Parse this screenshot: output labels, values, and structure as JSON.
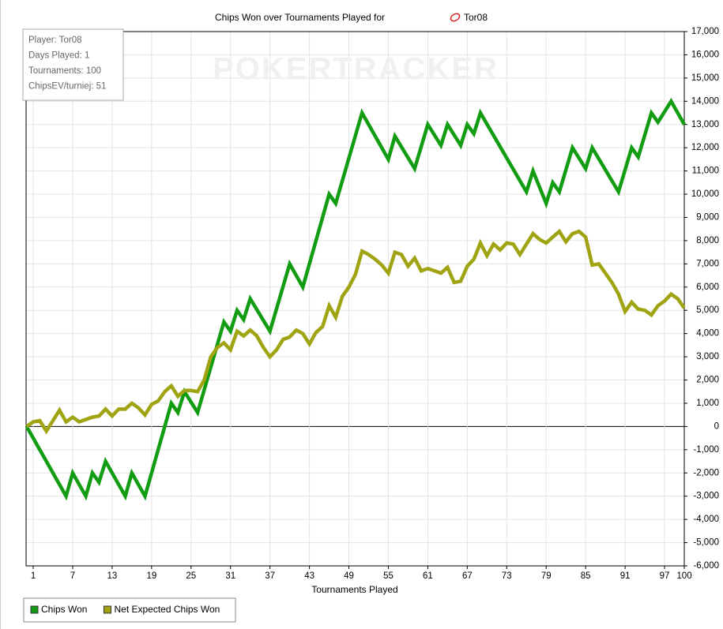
{
  "chart_data": {
    "type": "line",
    "title": "Chips Won over Tournaments Played for",
    "player": "Tor08",
    "watermark": "POKERTRACKER",
    "info": [
      "Player: Tor08",
      "Days Played: 1",
      "Tournaments: 100",
      "ChipsEV/turniej: 51"
    ],
    "xlabel": "Tournaments Played",
    "xlim": [
      0,
      100
    ],
    "xticks": [
      1,
      7,
      13,
      19,
      25,
      31,
      37,
      43,
      49,
      55,
      61,
      67,
      73,
      79,
      85,
      91,
      97,
      100
    ],
    "ylim": [
      -6000,
      17000
    ],
    "yticks": [
      {
        "value": -6000,
        "label": "-6,000"
      },
      {
        "value": -5000,
        "label": "-5,000"
      },
      {
        "value": -4000,
        "label": "-4,000"
      },
      {
        "value": -3000,
        "label": "-3,000"
      },
      {
        "value": -2000,
        "label": "-2,000"
      },
      {
        "value": -1000,
        "label": "-1,000"
      },
      0,
      {
        "value": 1000,
        "label": "1,000"
      },
      {
        "value": 2000,
        "label": "2,000"
      },
      {
        "value": 3000,
        "label": "3,000"
      },
      {
        "value": 4000,
        "label": "4,000"
      },
      {
        "value": 5000,
        "label": "5,000"
      },
      {
        "value": 6000,
        "label": "6,000"
      },
      {
        "value": 7000,
        "label": "7,000"
      },
      {
        "value": 8000,
        "label": "8,000"
      },
      {
        "value": 9000,
        "label": "9,000"
      },
      {
        "value": 10000,
        "label": "10,000"
      },
      {
        "value": 11000,
        "label": "11,000"
      },
      {
        "value": 12000,
        "label": "12,000"
      },
      {
        "value": 13000,
        "label": "13,000"
      },
      {
        "value": 14000,
        "label": "14,000"
      },
      {
        "value": 15000,
        "label": "15,000"
      },
      {
        "value": 16000,
        "label": "16,000"
      },
      {
        "value": 17000,
        "label": "17,000"
      }
    ],
    "grid": true,
    "series": [
      {
        "name": "Chips Won",
        "color": "#119c11",
        "x": [
          0,
          6,
          7,
          9,
          10,
          11,
          12,
          15,
          16,
          18,
          22,
          23,
          24,
          26,
          30,
          31,
          32,
          33,
          34,
          37,
          40,
          42,
          46,
          47,
          51,
          55,
          56,
          59,
          61,
          63,
          64,
          66,
          67,
          68,
          69,
          76,
          77,
          79,
          80,
          81,
          83,
          85,
          86,
          90,
          92,
          93,
          95,
          96,
          98,
          100
        ],
        "values": [
          0,
          -3000,
          -2000,
          -3000,
          -2000,
          -2400,
          -1500,
          -3000,
          -2000,
          -3000,
          1000,
          600,
          1500,
          600,
          4500,
          4100,
          5000,
          4600,
          5500,
          4100,
          7000,
          6000,
          10000,
          9600,
          13500,
          11500,
          12500,
          11100,
          13000,
          12100,
          13000,
          12100,
          13000,
          12600,
          13500,
          10100,
          11000,
          9600,
          10500,
          10100,
          12000,
          11100,
          12000,
          10100,
          12000,
          11600,
          13500,
          13100,
          14000,
          13000
        ]
      },
      {
        "name": "Net Expected Chips Won",
        "color": "#a0a312",
        "x": [
          0,
          1,
          2,
          3,
          5,
          6,
          7,
          8,
          10,
          11,
          12,
          13,
          14,
          15,
          16,
          17,
          18,
          19,
          20,
          21,
          22,
          23,
          24,
          25,
          26,
          27,
          28,
          29,
          30,
          31,
          32,
          33,
          34,
          35,
          36,
          37,
          38,
          39,
          40,
          41,
          42,
          43,
          44,
          45,
          46,
          47,
          48,
          49,
          50,
          51,
          52,
          53,
          54,
          55,
          56,
          57,
          58,
          59,
          60,
          61,
          62,
          63,
          64,
          65,
          66,
          67,
          68,
          69,
          70,
          71,
          72,
          73,
          74,
          75,
          76,
          77,
          78,
          79,
          80,
          81,
          82,
          83,
          84,
          85,
          86,
          87,
          88,
          89,
          90,
          91,
          92,
          93,
          94,
          95,
          96,
          97,
          98,
          99,
          100
        ],
        "values": [
          0,
          200,
          250,
          -200,
          700,
          200,
          400,
          200,
          400,
          450,
          750,
          450,
          750,
          750,
          1000,
          800,
          500,
          950,
          1100,
          1500,
          1750,
          1300,
          1550,
          1550,
          1500,
          2000,
          3000,
          3400,
          3600,
          3300,
          4100,
          3900,
          4150,
          3900,
          3400,
          3000,
          3300,
          3750,
          3850,
          4150,
          4000,
          3550,
          4050,
          4300,
          5200,
          4700,
          5600,
          6000,
          6550,
          7550,
          7400,
          7200,
          6950,
          6600,
          7500,
          7400,
          6900,
          7250,
          6700,
          6800,
          6700,
          6600,
          6850,
          6200,
          6250,
          6900,
          7200,
          7900,
          7350,
          7850,
          7600,
          7900,
          7850,
          7400,
          7850,
          8300,
          8050,
          7900,
          8150,
          8400,
          7950,
          8300,
          8400,
          8150,
          6950,
          7000,
          6600,
          6200,
          5700,
          4950,
          5350,
          5050,
          5000,
          4800,
          5200,
          5400,
          5700,
          5500,
          5100
        ]
      }
    ]
  }
}
